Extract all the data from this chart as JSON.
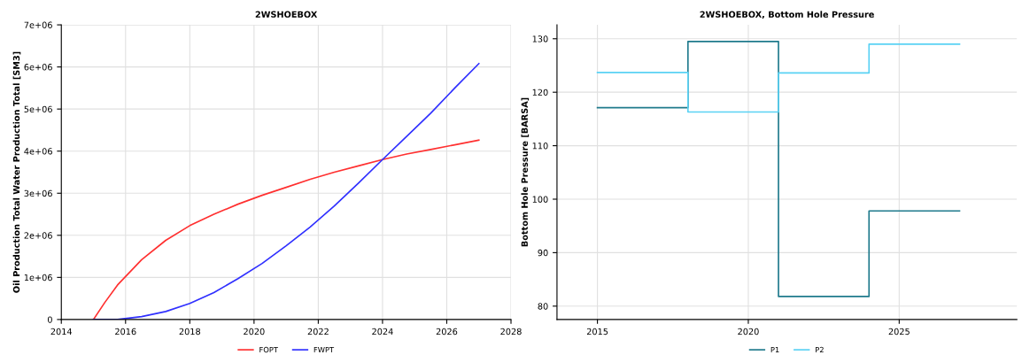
{
  "chart_data": [
    {
      "type": "line",
      "title": "2WSHOEBOX",
      "ylabel": "Oil Production Total Water Production Total [SM3]",
      "xlim": [
        2014,
        2028
      ],
      "xticks": [
        2014,
        2016,
        2018,
        2020,
        2022,
        2024,
        2026,
        2028
      ],
      "ylim": [
        0,
        7000000
      ],
      "yticks": [
        0,
        {
          "value": 1000000,
          "label": "1e+06"
        },
        {
          "value": 2000000,
          "label": "2e+06"
        },
        {
          "value": 3000000,
          "label": "3e+06"
        },
        {
          "value": 4000000,
          "label": "4e+06"
        },
        {
          "value": 5000000,
          "label": "5e+06"
        },
        {
          "value": 6000000,
          "label": "6e+06"
        },
        {
          "value": 7000000,
          "label": "7e+06"
        }
      ],
      "grid": true,
      "legend": "bottom",
      "series": [
        {
          "name": "FOPT",
          "color": "#ff3030",
          "x": [
            2015,
            2015.35,
            2015.75,
            2016.5,
            2017.25,
            2018,
            2018.75,
            2019.5,
            2020.25,
            2021,
            2021.75,
            2022.5,
            2023.25,
            2024,
            2024.75,
            2025.5,
            2026.25,
            2027
          ],
          "values": [
            0,
            400000,
            820000,
            1420000,
            1880000,
            2230000,
            2500000,
            2740000,
            2950000,
            3140000,
            3330000,
            3500000,
            3650000,
            3800000,
            3930000,
            4040000,
            4150000,
            4260000
          ]
        },
        {
          "name": "FWPT",
          "color": "#3030ff",
          "x": [
            2015,
            2015.75,
            2016.5,
            2017.25,
            2018,
            2018.75,
            2019.5,
            2020.25,
            2021,
            2021.75,
            2022.5,
            2023.25,
            2024,
            2024.75,
            2025.5,
            2026.25,
            2027
          ],
          "values": [
            0,
            0,
            70000,
            190000,
            380000,
            640000,
            970000,
            1330000,
            1750000,
            2200000,
            2700000,
            3240000,
            3800000,
            4350000,
            4900000,
            5500000,
            6080000
          ]
        }
      ]
    },
    {
      "type": "step",
      "title": "2WSHOEBOX, Bottom Hole Pressure",
      "ylabel": "Bottom Hole Pressure [BARSA]",
      "xlim": [
        2013.66,
        2028.9
      ],
      "xticks": [
        2015,
        2020,
        2025
      ],
      "ylim": [
        77.5,
        132.6
      ],
      "yticks": [
        80,
        90,
        100,
        110,
        120,
        130
      ],
      "grid": true,
      "legend": "bottom",
      "series": [
        {
          "name": "P1",
          "color": "#1f7a8c",
          "x": [
            2015,
            2018,
            2021,
            2024,
            2027
          ],
          "values": [
            117.1,
            129.5,
            81.8,
            97.8,
            97.8
          ]
        },
        {
          "name": "P2",
          "color": "#5ad2f4",
          "x": [
            2015,
            2018,
            2021,
            2024,
            2027
          ],
          "values": [
            123.7,
            116.3,
            123.6,
            129.0,
            129.0
          ]
        }
      ]
    }
  ]
}
